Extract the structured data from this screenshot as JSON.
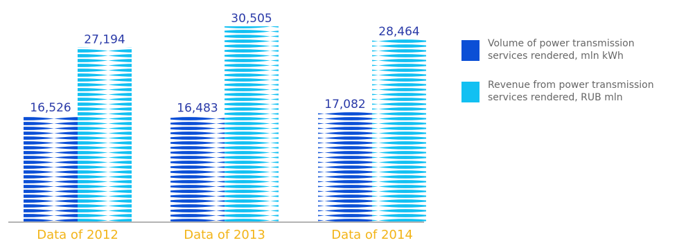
{
  "chart_data": {
    "type": "bar",
    "categories": [
      "Data of 2012",
      "Data of 2013",
      "Data of 2014"
    ],
    "series": [
      {
        "name": "Volume of power transmission services rendered, mln kWh",
        "values": [
          16526,
          16483,
          17082
        ],
        "labels": [
          "16,526",
          "16,483",
          "17,082"
        ],
        "color": "#0b4fd6"
      },
      {
        "name": "Revenue from power transmission services rendered, RUB mln",
        "values": [
          27194,
          30505,
          28464
        ],
        "labels": [
          "27,194",
          "30,505",
          "28,464"
        ],
        "color": "#12c0f2"
      }
    ],
    "legend": {
      "placement": "right",
      "items": [
        [
          "Volume of power transmission",
          "services rendered, mln kWh"
        ],
        [
          "Revenue from power transmission",
          "services rendered, RUB mln"
        ]
      ]
    },
    "grid": false,
    "label_color": "#2a3aa8",
    "category_color": "#f2b418",
    "axis_color": "#9a9a9a"
  }
}
